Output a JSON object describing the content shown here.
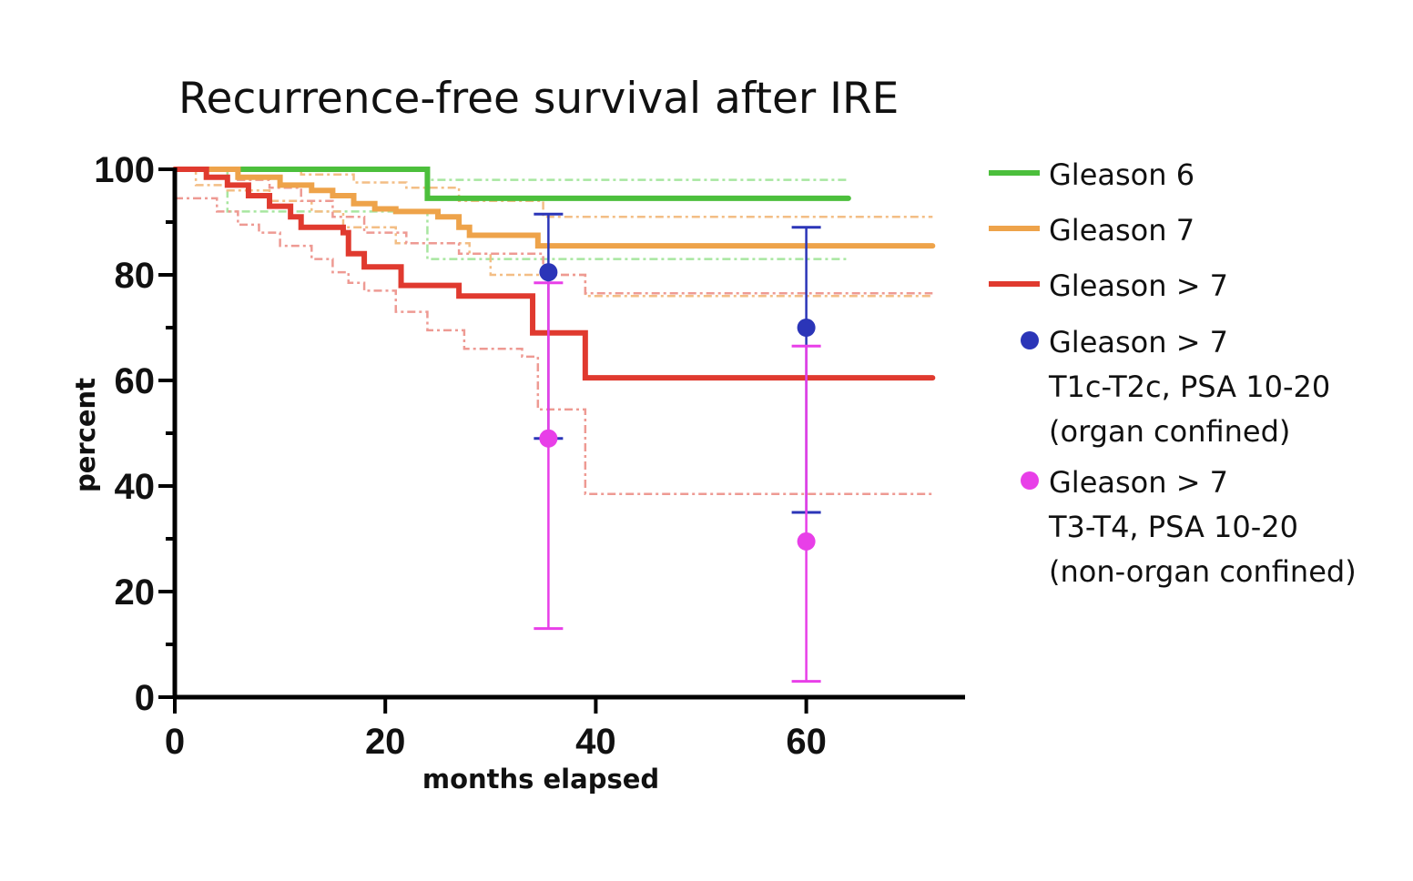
{
  "chart_data": {
    "type": "line",
    "subtype": "kaplan-meier step curves with confidence bands and point estimates with error bars",
    "title": "Recurrence-free survival after IRE",
    "xlabel": "months elapsed",
    "ylabel": "percent",
    "xlim": [
      0,
      75
    ],
    "ylim": [
      0,
      100
    ],
    "xticks": [
      0,
      20,
      40,
      60
    ],
    "xtick_labels": [
      "0",
      "20",
      "40",
      "60"
    ],
    "yticks": [
      0,
      20,
      40,
      60,
      80,
      100
    ],
    "ytick_labels": [
      "0",
      "20",
      "40",
      "60",
      "80",
      "100"
    ],
    "y_minor_ticks": [
      10,
      30,
      50,
      70,
      90
    ],
    "grid": false,
    "legend_position": "right",
    "series": [
      {
        "name": "Gleason 6",
        "kind": "step",
        "color": "#4cbf3c",
        "ci_color": "#a8e6a0",
        "x": [
          0,
          24,
          64
        ],
        "y": [
          100,
          94.5,
          94.5
        ],
        "ci_upper": {
          "x": [
            0,
            24,
            64
          ],
          "y": [
            100,
            98,
            98
          ]
        },
        "ci_lower": {
          "x": [
            0,
            5,
            24,
            64
          ],
          "y": [
            100,
            92,
            83,
            83
          ]
        }
      },
      {
        "name": "Gleason 7",
        "kind": "step",
        "color": "#eea34a",
        "ci_color": "#f3be85",
        "x": [
          0,
          6,
          10,
          13,
          15,
          17,
          19,
          21,
          25,
          27,
          28,
          34.5,
          72
        ],
        "y": [
          100,
          98.5,
          97,
          96,
          95,
          93.5,
          92.5,
          92,
          91,
          89,
          87.5,
          85.5,
          85.5
        ],
        "ci_upper": {
          "x": [
            0,
            12,
            17,
            22,
            27,
            35,
            72
          ],
          "y": [
            100,
            99,
            97.5,
            96.5,
            94,
            91,
            91
          ]
        },
        "ci_lower": {
          "x": [
            0,
            2,
            5,
            9,
            13,
            16,
            21,
            28,
            30,
            39,
            72
          ],
          "y": [
            100,
            97,
            96,
            94,
            92,
            89,
            86,
            84,
            80,
            76,
            76
          ]
        }
      },
      {
        "name": "Gleason > 7",
        "kind": "step",
        "color": "#e03a2f",
        "ci_color": "#ee9a93",
        "x": [
          0,
          3,
          5,
          7,
          9,
          11,
          12,
          16,
          16.5,
          18,
          21.5,
          27,
          34,
          39,
          72
        ],
        "y": [
          100,
          98.5,
          97,
          95,
          93,
          91,
          89,
          88,
          84,
          81.5,
          78,
          76,
          69,
          60.5,
          60.5
        ],
        "ci_upper": {
          "x": [
            0,
            6,
            9,
            12,
            15,
            18,
            22,
            27,
            35,
            39,
            72
          ],
          "y": [
            100,
            98,
            96.5,
            94,
            91,
            88,
            86,
            84,
            80,
            76.5,
            76.5
          ]
        },
        "ci_lower": {
          "x": [
            0,
            4,
            6,
            8,
            10,
            13,
            15,
            16.5,
            18,
            21,
            24,
            27.5,
            33,
            34.5,
            39,
            72
          ],
          "y": [
            94.5,
            92,
            89.5,
            88,
            85.5,
            83,
            80.5,
            78.5,
            77,
            73,
            69.5,
            66,
            64.5,
            54.5,
            38.5,
            38.5
          ]
        }
      },
      {
        "name": "Gleason > 7 T1c-T2c, PSA 10-20 (organ confined)",
        "kind": "point-errorbar",
        "color": "#2b35b8",
        "x": [
          35.5,
          60
        ],
        "y": [
          80.5,
          70
        ],
        "ci_lower": [
          49,
          35
        ],
        "ci_upper": [
          91.5,
          89
        ]
      },
      {
        "name": "Gleason > 7 T3-T4, PSA 10-20 (non-organ confined)",
        "kind": "point-errorbar",
        "color": "#e83fe8",
        "x": [
          35.5,
          60
        ],
        "y": [
          49,
          29.5
        ],
        "ci_lower": [
          13,
          3
        ],
        "ci_upper": [
          78.5,
          66.5
        ]
      }
    ],
    "legend": [
      {
        "marker": "line",
        "color": "#4cbf3c",
        "lines": [
          "Gleason 6"
        ]
      },
      {
        "marker": "line",
        "color": "#eea34a",
        "lines": [
          "Gleason 7"
        ]
      },
      {
        "marker": "line",
        "color": "#e03a2f",
        "lines": [
          "Gleason > 7"
        ]
      },
      {
        "marker": "dot",
        "color": "#2b35b8",
        "lines": [
          "Gleason > 7",
          "T1c-T2c, PSA 10-20",
          "(organ confined)"
        ]
      },
      {
        "marker": "dot",
        "color": "#e83fe8",
        "lines": [
          "Gleason > 7",
          "T3-T4, PSA 10-20",
          "(non-organ confined)"
        ]
      }
    ]
  }
}
